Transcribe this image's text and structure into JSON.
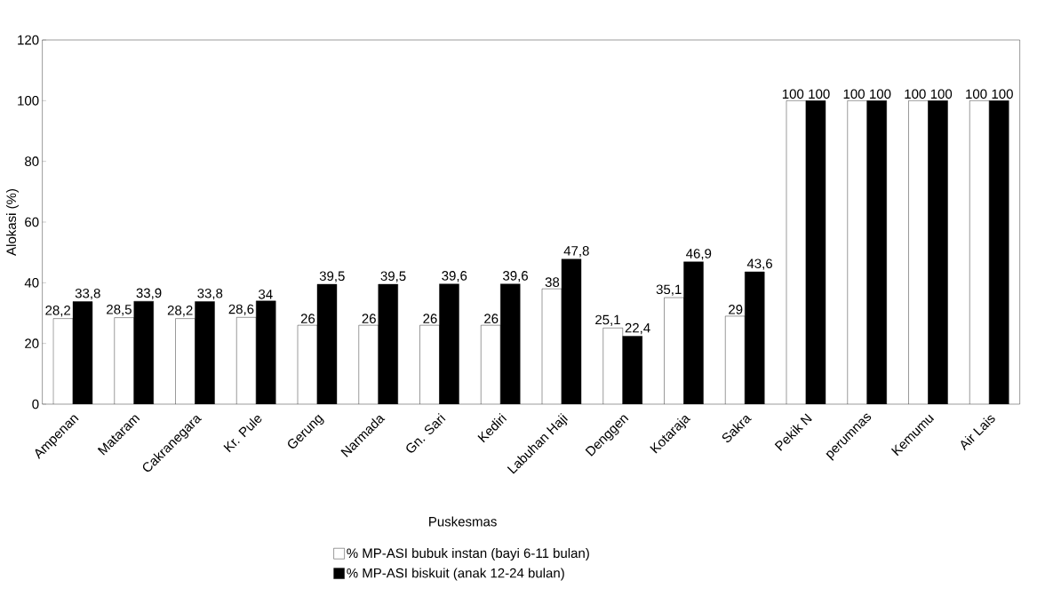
{
  "chart_data": {
    "type": "bar",
    "xlabel": "Puskesmas",
    "ylabel": "Alokasi (%)",
    "categories": [
      "Ampenan",
      "Mataram",
      "Cakranegara",
      "Kr. Pule",
      "Gerung",
      "Narmada",
      "Gn. Sari",
      "Kediri",
      "Labuhan Haji",
      "Denggen",
      "Kotaraja",
      "Sakra",
      "Pekik N",
      "perumnas",
      "Kemumu",
      "Air Lais"
    ],
    "series": [
      {
        "name": "% MP-ASI bubuk instan (bayi 6-11 bulan)",
        "color": "#ffffff",
        "values": [
          28.2,
          28.5,
          28.2,
          28.6,
          26,
          26,
          26,
          26,
          38,
          25.1,
          35.1,
          29,
          100,
          100,
          100,
          100
        ],
        "value_labels": [
          "28,2",
          "28,5",
          "28,2",
          "28,6",
          "26",
          "26",
          "26",
          "26",
          "38",
          "25,1",
          "35,1",
          "29",
          "100",
          "100",
          "100",
          "100"
        ]
      },
      {
        "name": "% MP-ASI biskuit (anak 12-24 bulan)",
        "color": "#000000",
        "values": [
          33.8,
          33.9,
          33.8,
          34,
          39.5,
          39.5,
          39.6,
          39.6,
          47.8,
          22.4,
          46.9,
          43.6,
          100,
          100,
          100,
          100
        ],
        "value_labels": [
          "33,8",
          "33,9",
          "33,8",
          "34",
          "39,5",
          "39,5",
          "39,6",
          "39,6",
          "47,8",
          "22,4",
          "46,9",
          "43,6",
          "100",
          "100",
          "100",
          "100"
        ]
      }
    ],
    "ylim": [
      0,
      120
    ],
    "yticks": [
      0,
      20,
      40,
      60,
      80,
      100,
      120
    ],
    "legend": "bottom",
    "grid": false
  }
}
